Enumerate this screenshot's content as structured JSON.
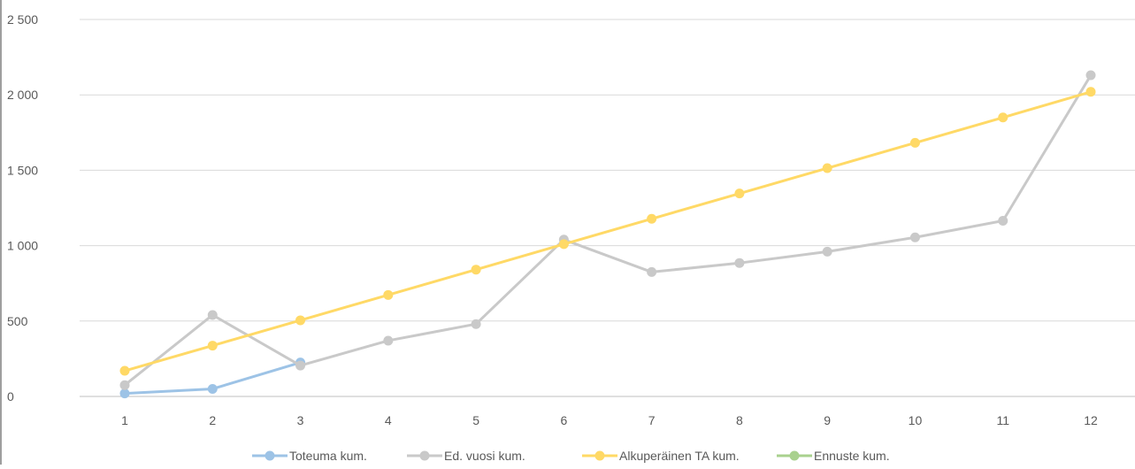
{
  "chart_data": {
    "type": "line",
    "categories": [
      "1",
      "2",
      "3",
      "4",
      "5",
      "6",
      "7",
      "8",
      "9",
      "10",
      "11",
      "12"
    ],
    "ylim": [
      0,
      2500
    ],
    "yticks": [
      0,
      500,
      1000,
      1500,
      2000,
      2500
    ],
    "ytick_labels": [
      "0",
      "500",
      "1 000",
      "1 500",
      "2 000",
      "2 500"
    ],
    "grid": true,
    "legend_position": "bottom",
    "series": [
      {
        "name": "Toteuma kum.",
        "color": "#9dc3e6",
        "values": [
          20,
          50,
          225,
          null,
          null,
          null,
          null,
          null,
          null,
          null,
          null,
          null
        ]
      },
      {
        "name": "Ed. vuosi kum.",
        "color": "#c9c9c9",
        "values": [
          75,
          540,
          205,
          370,
          480,
          1040,
          825,
          885,
          960,
          1055,
          1165,
          2130
        ]
      },
      {
        "name": "Alkuperäinen TA kum.",
        "color": "#ffd966",
        "values": [
          170,
          337,
          505,
          673,
          841,
          1010,
          1178,
          1346,
          1514,
          1682,
          1850,
          2020
        ]
      },
      {
        "name": "Ennuste kum.",
        "color": "#a9d18e",
        "values": [
          null,
          null,
          null,
          null,
          null,
          null,
          null,
          null,
          null,
          null,
          null,
          null
        ]
      }
    ]
  }
}
